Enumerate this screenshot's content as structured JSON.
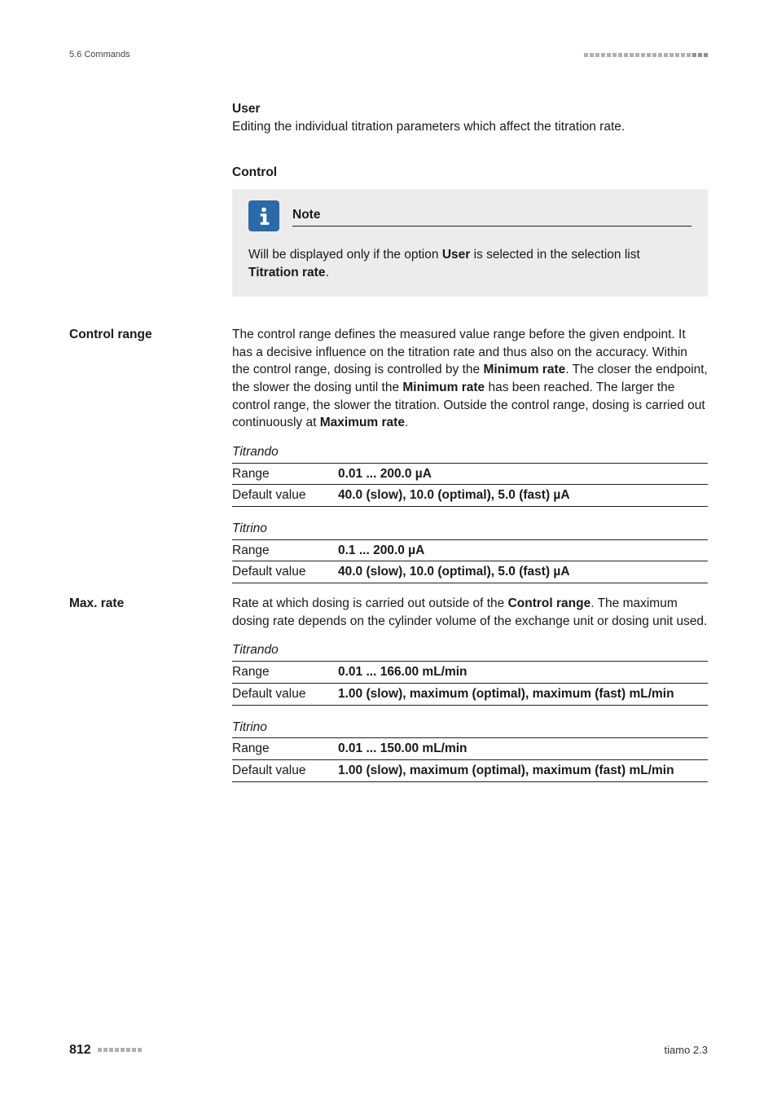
{
  "header": {
    "section_label": "5.6 Commands",
    "ornament_count": 22
  },
  "user_block": {
    "label": "User",
    "desc": "Editing the individual titration parameters which affect the titration rate."
  },
  "control": {
    "heading": "Control",
    "note": {
      "title": "Note",
      "prefix": "Will be displayed only if the option ",
      "bold1": "User",
      "mid": " is selected in the selection list ",
      "bold2": "Titration rate",
      "suffix": "."
    }
  },
  "control_range": {
    "side_label": "Control range",
    "para_parts": {
      "p1": "The control range defines the measured value range before the given endpoint. It has a decisive influence on the titration rate and thus also on the accuracy. Within the control range, dosing is controlled by the ",
      "b1": "Minimum rate",
      "p2": ". The closer the endpoint, the slower the dosing until the ",
      "b2": "Minimum rate",
      "p3": " has been reached. The larger the control range, the slower the titration. Outside the control range, dosing is carried out continuously at ",
      "b3": "Maximum rate",
      "p4": "."
    },
    "groups": [
      {
        "title": "Titrando",
        "rows": [
          {
            "k": "Range",
            "v": "0.01 ... 200.0 µA"
          },
          {
            "k": "Default value",
            "v": "40.0 (slow), 10.0 (optimal), 5.0 (fast) µA"
          }
        ]
      },
      {
        "title": "Titrino",
        "rows": [
          {
            "k": "Range",
            "v": "0.1 ... 200.0 µA"
          },
          {
            "k": "Default value",
            "v": "40.0 (slow), 10.0 (optimal), 5.0 (fast) µA"
          }
        ]
      }
    ]
  },
  "max_rate": {
    "side_label": "Max. rate",
    "para_parts": {
      "p1": "Rate at which dosing is carried out outside of the ",
      "b1": "Control range",
      "p2": ". The maximum dosing rate depends on the cylinder volume of the exchange unit or dosing unit used."
    },
    "groups": [
      {
        "title": "Titrando",
        "rows": [
          {
            "k": "Range",
            "v": "0.01 ... 166.00 mL/min"
          },
          {
            "k": "Default value",
            "v": "1.00 (slow), maximum (optimal), maximum (fast) mL/min"
          }
        ]
      },
      {
        "title": "Titrino",
        "rows": [
          {
            "k": "Range",
            "v": "0.01 ... 150.00 mL/min"
          },
          {
            "k": "Default value",
            "v": "1.00 (slow), maximum (optimal), maximum (fast) mL/min"
          }
        ]
      }
    ]
  },
  "footer": {
    "page_number": "812",
    "ornament_count": 8,
    "doc_label": "tiamo 2.3"
  }
}
